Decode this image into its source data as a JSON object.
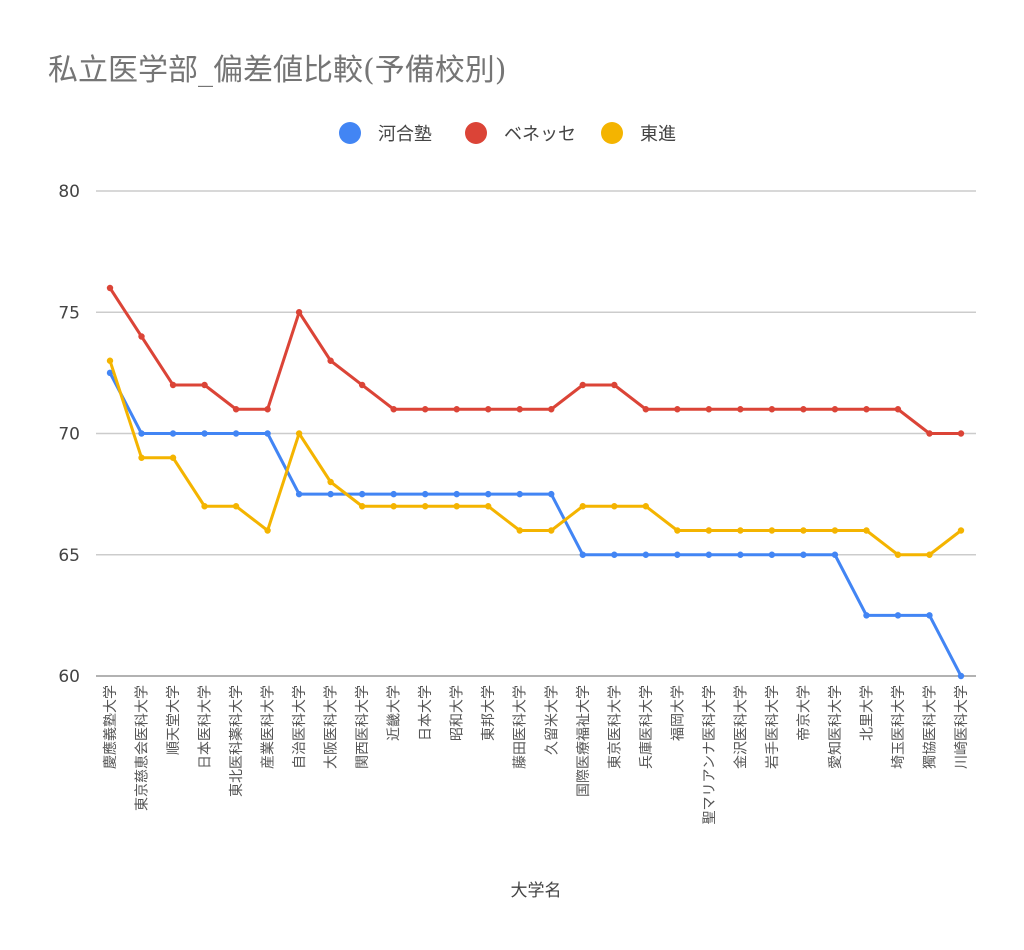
{
  "chart_data": {
    "type": "line",
    "title": "私立医学部_偏差値比較(予備校別)",
    "xlabel": "大学名",
    "ylabel": "",
    "ylim": [
      60,
      80
    ],
    "yticks": [
      60,
      65,
      70,
      75,
      80
    ],
    "grid": true,
    "legend_position": "top",
    "categories": [
      "慶應義塾大学",
      "東京慈恵会医科大学",
      "順天堂大学",
      "日本医科大学",
      "東北医科薬科大学",
      "産業医科大学",
      "自治医科大学",
      "大阪医科大学",
      "関西医科大学",
      "近畿大学",
      "日本大学",
      "昭和大学",
      "東邦大学",
      "藤田医科大学",
      "久留米大学",
      "国際医療福祉大学",
      "東京医科大学",
      "兵庫医科大学",
      "福岡大学",
      "聖マリアンナ医科大学",
      "金沢医科大学",
      "岩手医科大学",
      "帝京大学",
      "愛知医科大学",
      "北里大学",
      "埼玉医科大学",
      "獨協医科大学",
      "川崎医科大学"
    ],
    "series": [
      {
        "name": "河合塾",
        "color": "#4285f4",
        "values": [
          72.5,
          70,
          70,
          70,
          70,
          70,
          67.5,
          67.5,
          67.5,
          67.5,
          67.5,
          67.5,
          67.5,
          67.5,
          67.5,
          65,
          65,
          65,
          65,
          65,
          65,
          65,
          65,
          65,
          62.5,
          62.5,
          62.5,
          60
        ]
      },
      {
        "name": "ベネッセ",
        "color": "#db4437",
        "values": [
          76,
          74,
          72,
          72,
          71,
          71,
          75,
          73,
          72,
          71,
          71,
          71,
          71,
          71,
          71,
          72,
          72,
          71,
          71,
          71,
          71,
          71,
          71,
          71,
          71,
          71,
          70,
          70
        ]
      },
      {
        "name": "東進",
        "color": "#f4b400",
        "values": [
          73,
          69,
          69,
          67,
          67,
          66,
          70,
          68,
          67,
          67,
          67,
          67,
          67,
          66,
          66,
          67,
          67,
          67,
          66,
          66,
          66,
          66,
          66,
          66,
          66,
          65,
          65,
          66
        ]
      }
    ]
  }
}
